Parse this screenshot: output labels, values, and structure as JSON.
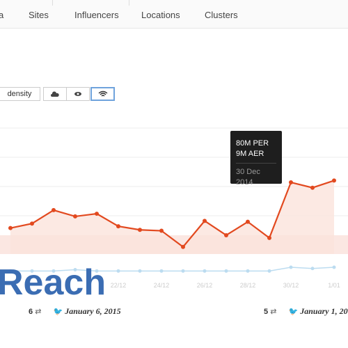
{
  "nav": {
    "tabs": [
      "a",
      "Sites",
      "Influencers",
      "Locations",
      "Clusters"
    ]
  },
  "toolbar": {
    "buttons": [
      "density"
    ]
  },
  "chart_data": {
    "type": "line",
    "categories": [
      null,
      null,
      null,
      null,
      null,
      "22/12",
      null,
      "24/12",
      null,
      "26/12",
      null,
      "28/12",
      null,
      "30/12",
      null,
      "1/01"
    ],
    "series": [
      {
        "color": "#e2491f",
        "values": [
          29,
          34,
          49,
          42,
          45,
          31,
          27,
          26,
          8,
          37,
          21,
          36,
          18,
          80,
          74,
          82
        ]
      },
      {
        "color": "#bcdcf0",
        "values": [
          6,
          6,
          6,
          7,
          6,
          6,
          6,
          6,
          6,
          6,
          6,
          6,
          6,
          9,
          8,
          9
        ]
      }
    ]
  },
  "tooltip": {
    "lines": [
      "80M PER",
      "9M AER"
    ],
    "date": "30 Dec 2014"
  },
  "overlay": "Reach",
  "posts": [
    {
      "count": 6,
      "date": "January 6, 2015"
    },
    {
      "count": 5,
      "date": "January 1, 20"
    }
  ]
}
